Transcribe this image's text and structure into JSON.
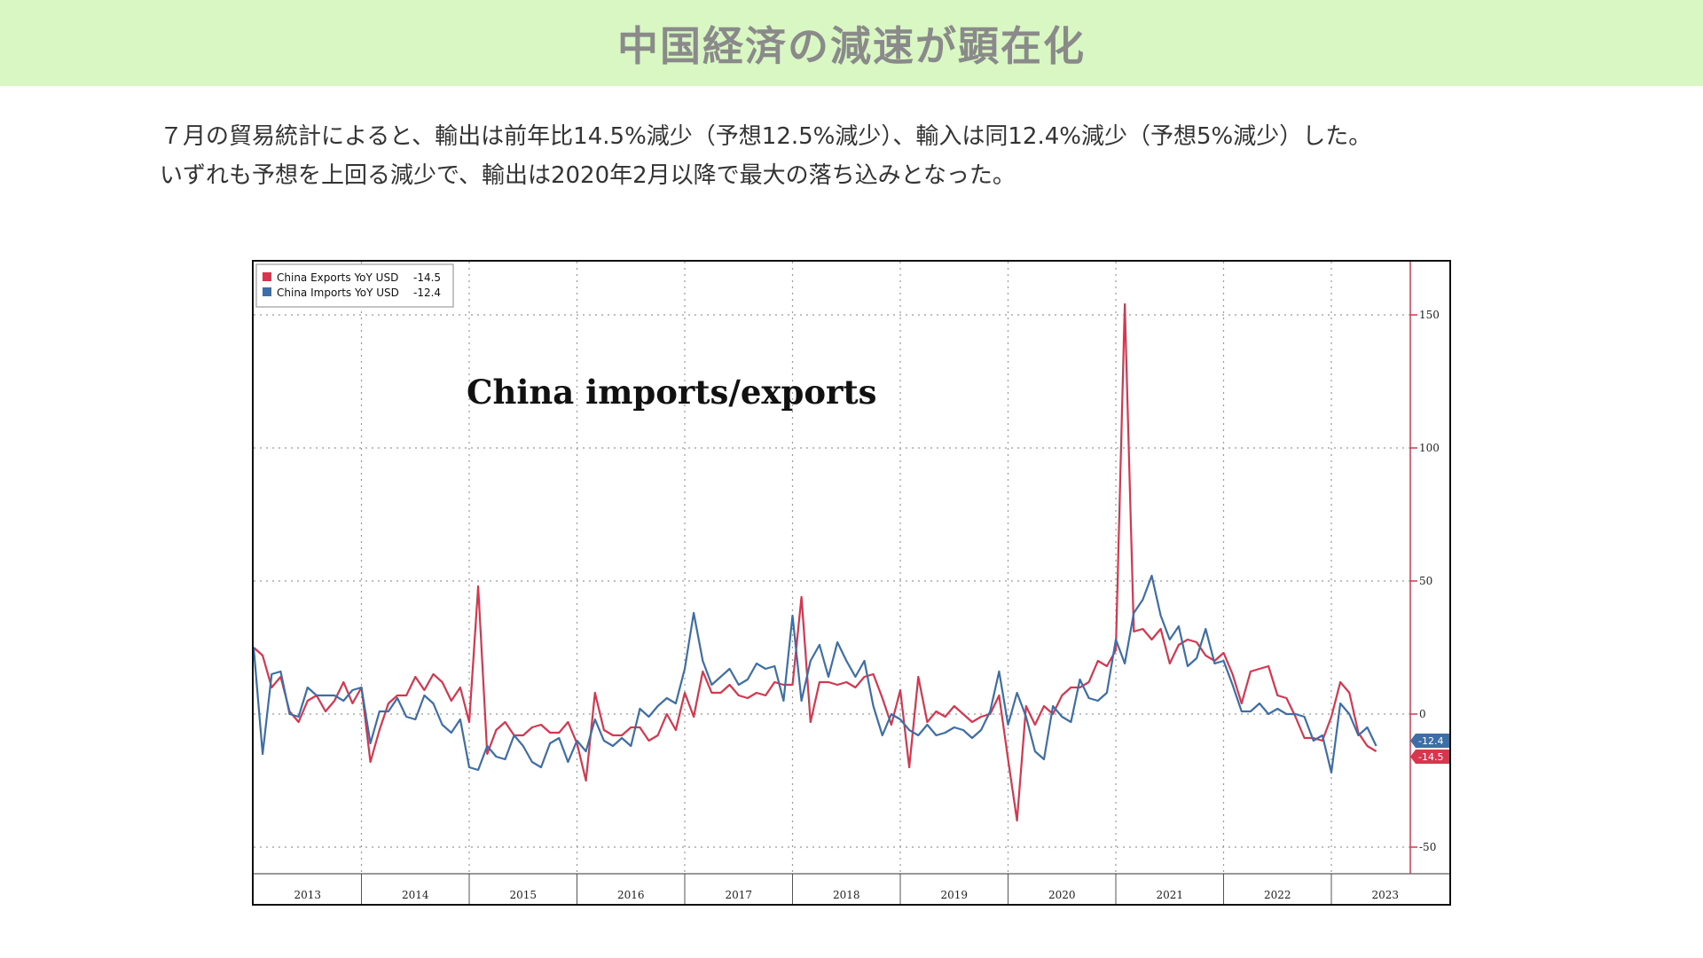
{
  "header": {
    "title": "中国経済の減速が顕在化"
  },
  "body": {
    "line1": "７月の貿易統計によると、輸出は前年比14.5%減少（予想12.5%減少）、輸入は同12.4%減少（予想5%減少）した。",
    "line2": "いずれも予想を上回る減少で、輸出は2020年2月以降で最大の落ち込みとなった。"
  },
  "colors": {
    "header_bg": "#d9f7c2",
    "exports": "#d6364e",
    "imports": "#3e6ea6",
    "grid": "#999999"
  },
  "chart_data": {
    "type": "line",
    "title": "China imports/exports",
    "xlabel": "",
    "ylabel": "",
    "ylim": [
      -60,
      170
    ],
    "yticks": [
      150,
      100,
      50,
      0,
      -50
    ],
    "year_labels": [
      "2013",
      "2014",
      "2015",
      "2016",
      "2017",
      "2018",
      "2019",
      "2020",
      "2021",
      "2022",
      "2023"
    ],
    "start_year": 2013,
    "grid": true,
    "legend_position": "top-left",
    "series": [
      {
        "name": "China Exports YoY USD",
        "last_value_label": "-14.5",
        "color": "#d6364e",
        "values": [
          25,
          22,
          10,
          14,
          1,
          -3,
          5,
          7,
          1,
          5,
          12,
          4,
          10,
          -18,
          -6,
          4,
          7,
          7,
          14,
          9,
          15,
          12,
          5,
          10,
          -3,
          48,
          -15,
          -6,
          -3,
          -8,
          -8,
          -5,
          -4,
          -7,
          -7,
          -3,
          -11,
          -25,
          8,
          -6,
          -8,
          -8,
          -5,
          -5,
          -10,
          -8,
          0,
          -6,
          8,
          -1,
          16,
          8,
          8,
          11,
          7,
          6,
          8,
          7,
          12,
          11,
          11,
          44,
          -3,
          12,
          12,
          11,
          12,
          10,
          14,
          15,
          6,
          -4,
          9,
          -20,
          14,
          -3,
          1,
          -1,
          3,
          0,
          -3,
          -1,
          0,
          7,
          -17,
          -40,
          3,
          -4,
          3,
          0,
          7,
          10,
          10,
          12,
          20,
          18,
          24,
          154,
          31,
          32,
          28,
          32,
          19,
          26,
          28,
          27,
          22,
          20,
          23,
          15,
          4,
          16,
          17,
          18,
          7,
          6,
          -1,
          -9,
          -9,
          -10,
          -1,
          12,
          8,
          -7,
          -12,
          -14
        ]
      },
      {
        "name": "China Imports YoY USD",
        "last_value_label": "-12.4",
        "color": "#3e6ea6",
        "values": [
          25,
          -15,
          15,
          16,
          0,
          -1,
          10,
          7,
          7,
          7,
          5,
          9,
          10,
          -11,
          1,
          1,
          6,
          -1,
          -2,
          7,
          4,
          -4,
          -7,
          -2,
          -20,
          -21,
          -12,
          -16,
          -17,
          -8,
          -12,
          -18,
          -20,
          -11,
          -9,
          -18,
          -10,
          -14,
          -2,
          -10,
          -12,
          -9,
          -12,
          2,
          -1,
          3,
          6,
          4,
          17,
          38,
          20,
          11,
          14,
          17,
          11,
          13,
          19,
          17,
          18,
          5,
          37,
          5,
          20,
          26,
          14,
          27,
          20,
          14,
          20,
          3,
          -8,
          0,
          -2,
          -6,
          -8,
          -4,
          -8,
          -7,
          -5,
          -6,
          -9,
          -6,
          1,
          16,
          -4,
          8,
          -1,
          -14,
          -17,
          3,
          -1,
          -3,
          13,
          6,
          5,
          8,
          28,
          19,
          38,
          43,
          52,
          37,
          28,
          33,
          18,
          21,
          32,
          19,
          20,
          11,
          1,
          1,
          4,
          0,
          2,
          0,
          0,
          -1,
          -10,
          -8,
          -22,
          4,
          0,
          -8,
          -5,
          -12
        ]
      }
    ]
  }
}
